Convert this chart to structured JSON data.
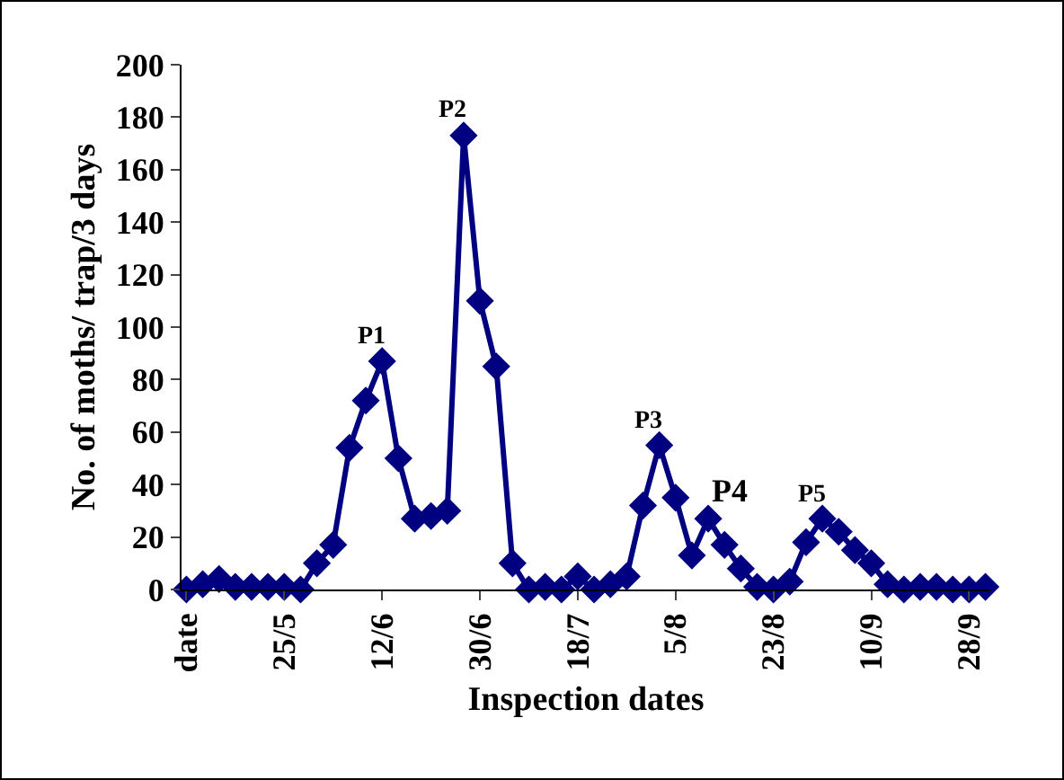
{
  "chart_data": {
    "type": "line",
    "xlabel": "Inspection dates",
    "ylabel": "No. of moths/ trap/3 days",
    "categories": [
      "date",
      null,
      null,
      null,
      null,
      null,
      "25/5",
      null,
      null,
      null,
      null,
      null,
      "12/6",
      null,
      null,
      null,
      null,
      null,
      "30/6",
      null,
      null,
      null,
      null,
      null,
      "18/7",
      null,
      null,
      null,
      null,
      null,
      "5/8",
      null,
      null,
      null,
      null,
      null,
      "23/8",
      null,
      null,
      null,
      null,
      null,
      "10/9",
      null,
      null,
      null,
      null,
      null,
      "28/9",
      null
    ],
    "series": [
      {
        "color": "#000080",
        "values": [
          0,
          2,
          4,
          1,
          1,
          1,
          1,
          0,
          10,
          17,
          54,
          72,
          87,
          50,
          27,
          28,
          30,
          173,
          110,
          85,
          10,
          0,
          1,
          0,
          5,
          0,
          2,
          5,
          32,
          55,
          35,
          13,
          27,
          17,
          8,
          1,
          0,
          3,
          18,
          27,
          22,
          15,
          10,
          2,
          0,
          1,
          1,
          0,
          0,
          1
        ]
      }
    ],
    "annotations": [
      {
        "text": "P1",
        "x": "12/6",
        "y": 87
      },
      {
        "text": "P2",
        "y": 173
      },
      {
        "text": "P3",
        "y": 55
      },
      {
        "text": "P4",
        "y": 27
      },
      {
        "text": "P5",
        "y": 27
      }
    ],
    "ylim": [
      0,
      200
    ],
    "yticks": [
      0,
      20,
      40,
      60,
      80,
      100,
      120,
      140,
      160,
      180,
      200
    ],
    "grid": false,
    "legend": false,
    "marker": "diamond",
    "line_style": "solid"
  }
}
